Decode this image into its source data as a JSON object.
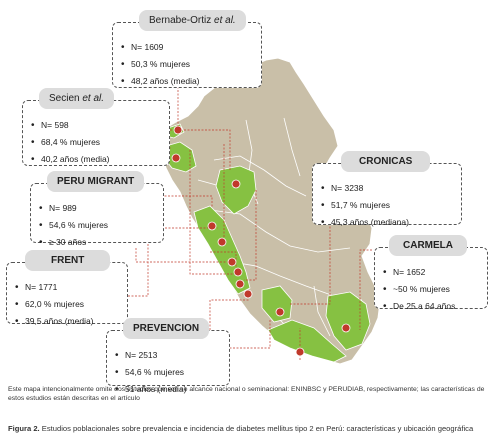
{
  "colors": {
    "land": "#c9bfa8",
    "highlight": "#86c142",
    "dot": "#c0392b",
    "leader": "#c0392b",
    "panel_header": "#dcdcdc"
  },
  "studies": {
    "bernabe": {
      "author": "Bernabe-Ortiz",
      "etal": "et al.",
      "items": [
        "N= 1609",
        "50,3 % mujeres",
        "48,2 años (media)"
      ]
    },
    "secien": {
      "author": "Secien",
      "etal": "et al.",
      "items": [
        "N= 598",
        "68,4 % mujeres",
        "40,2 años (media)"
      ]
    },
    "peru_migrant": {
      "title": "PERU MIGRANT",
      "items": [
        "N= 989",
        "54,6 % mujeres",
        "≥ 30 años"
      ]
    },
    "frent": {
      "title": "FRENT",
      "items": [
        "N= 1771",
        "62,0 % mujeres",
        "39,5 años (media)"
      ]
    },
    "prevencion": {
      "title": "PREVENCION",
      "items": [
        "N= 2513",
        "54,6 % mujeres",
        "51 años (media)"
      ]
    },
    "cronicas": {
      "title": "CRONICAS",
      "items": [
        "N= 3238",
        "51,7 % mujeres",
        "45,3 años (mediana)"
      ]
    },
    "carmela": {
      "title": "CARMELA",
      "items": [
        "N= 1652",
        "~50 % mujeres",
        "De 25 a 64 años"
      ]
    }
  },
  "footnote": "Este mapa intencionalmente omite dos estudios que son se alcance nacional o seminacional: ENINBSC y PERUDIAB, respectivamente; las características de estos estudios están descritas en el artículo",
  "caption": {
    "label": "Figura 2.",
    "text": "Estudios poblacionales sobre prevalencia e incidencia de diabetes mellitus tipo 2 en Perú: características y ubicación geográfica"
  }
}
